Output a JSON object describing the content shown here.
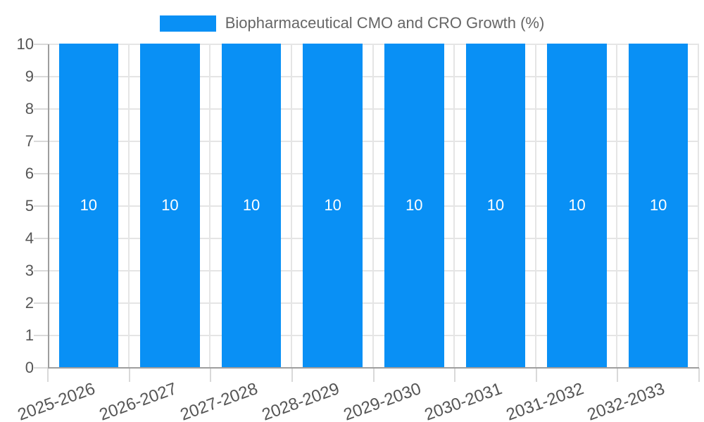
{
  "legend": {
    "label": "Biopharmaceutical CMO and CRO Growth (%)"
  },
  "chart_data": {
    "type": "bar",
    "title": "Biopharmaceutical CMO and CRO Growth (%)",
    "categories": [
      "2025-2026",
      "2026-2027",
      "2027-2028",
      "2028-2029",
      "2029-2030",
      "2030-2031",
      "2031-2032",
      "2032-2033"
    ],
    "values": [
      10,
      10,
      10,
      10,
      10,
      10,
      10,
      10
    ],
    "bar_value_labels": [
      "10",
      "10",
      "10",
      "10",
      "10",
      "10",
      "10",
      "10"
    ],
    "xlabel": "",
    "ylabel": "",
    "ylim": [
      0,
      10
    ],
    "ytick_step": 1,
    "yticks": [
      0,
      1,
      2,
      3,
      4,
      5,
      6,
      7,
      8,
      9,
      10
    ],
    "grid": true,
    "legend_position": "top",
    "x_label_rotation_deg": -20,
    "colors": {
      "bar": "#0990f5",
      "axis": "#9e9e9e",
      "grid": "#e5e5e5",
      "tick": "#d9d9d9",
      "label": "#555555",
      "title": "#666666",
      "bar_label": "#ffffff"
    }
  }
}
